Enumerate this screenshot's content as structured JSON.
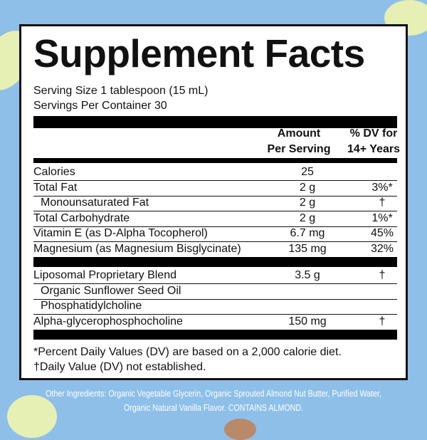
{
  "title": "Supplement Facts",
  "serving_size": "Serving Size 1 tablespoon (15 mL)",
  "servings_per_container": "Servings Per Container 30",
  "header": {
    "amount_line1": "Amount",
    "amount_line2": "Per Serving",
    "dv_line1": "% DV for",
    "dv_line2": "14+ Years"
  },
  "rows": [
    {
      "name": "Calories",
      "amount": "25",
      "dv": ""
    },
    {
      "name": "Total Fat",
      "amount": "2 g",
      "dv": "3%*"
    },
    {
      "name": "Monounsaturated Fat",
      "amount": "2 g",
      "dv": "†"
    },
    {
      "name": "Total Carbohydrate",
      "amount": "2 g",
      "dv": "1%*"
    },
    {
      "name": "Vitamin E (as D-Alpha Tocopherol)",
      "amount": "6.7 mg",
      "dv": "45%"
    },
    {
      "name": "Magnesium (as Magnesium Bisglycinate)",
      "amount": "135 mg",
      "dv": "32%"
    }
  ],
  "blend": [
    {
      "name": "Liposomal Proprietary Blend",
      "amount": "3.5 g",
      "dv": "†"
    },
    {
      "name": "Organic Sunflower Seed Oil",
      "amount": "",
      "dv": ""
    },
    {
      "name": "Phosphatidylcholine",
      "amount": "",
      "dv": ""
    },
    {
      "name": "Alpha-glycerophosphocholine",
      "amount": "150 mg",
      "dv": "†"
    }
  ],
  "footnotes": [
    "*Percent Daily Values (DV) are based on a 2,000 calorie diet.",
    "†Daily Value (DV) not established."
  ],
  "other_ingredients": [
    "Other Ingredients: Organic Vegetable Glycerin, Organic Sprouted Almond Nut Butter, Purified Water,",
    "Organic Natural Vanilla Flavor. CONTAINS ALMOND."
  ],
  "colors": {
    "background": "#8dbfe9",
    "flower": "#e6efb4",
    "almond": "#b98a6a"
  }
}
